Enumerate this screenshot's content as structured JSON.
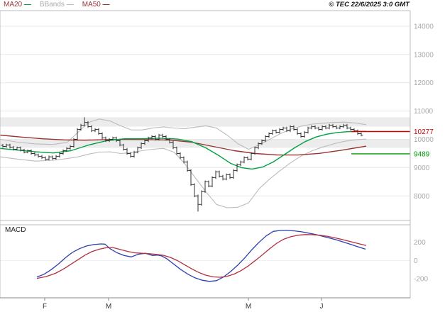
{
  "header": {
    "copyright": "© TEC 22/6/2025 3:0 GMT",
    "legend": [
      {
        "label": "MA20",
        "text_color": "#993333",
        "dash_color": "#00a040"
      },
      {
        "label": "BBands",
        "text_color": "#aaaaaa",
        "dash_color": "#bbbbbb"
      },
      {
        "label": "MA50",
        "text_color": "#993333",
        "dash_color": "#993333"
      }
    ]
  },
  "chart_data": [
    {
      "type": "candlestick",
      "title": "",
      "panel": "price",
      "ylim": [
        7130,
        14550
      ],
      "y_ticks": [
        14000,
        13000,
        12000,
        11000,
        10000,
        9000,
        8000
      ],
      "x_ticks": [
        {
          "label": "F",
          "x": 63
        },
        {
          "label": "M",
          "x": 153
        },
        {
          "label": "M",
          "x": 350
        },
        {
          "label": "J",
          "x": 453
        }
      ],
      "x_start": 4,
      "x_step": 5,
      "wick": 45,
      "closes": [
        9750,
        9800,
        9720,
        9650,
        9700,
        9620,
        9550,
        9600,
        9500,
        9450,
        9400,
        9350,
        9300,
        9380,
        9320,
        9400,
        9500,
        9600,
        9680,
        9750,
        10000,
        10350,
        10500,
        10600,
        10450,
        10300,
        10350,
        10200,
        10050,
        9950,
        10000,
        10050,
        9950,
        9800,
        9650,
        9500,
        9400,
        9550,
        9700,
        9850,
        9950,
        10050,
        10100,
        10000,
        10150,
        10100,
        10000,
        9900,
        9700,
        9500,
        9350,
        9200,
        8900,
        8400,
        8000,
        7700,
        8150,
        8500,
        8350,
        8650,
        8850,
        8700,
        8600,
        8750,
        8650,
        8900,
        9100,
        9200,
        9350,
        9300,
        9500,
        9700,
        9850,
        9950,
        10100,
        10200,
        10300,
        10250,
        10350,
        10400,
        10300,
        10450,
        10350,
        10200,
        10100,
        10250,
        10400,
        10450,
        10400,
        10350,
        10450,
        10400,
        10500,
        10450,
        10400,
        10450,
        10500,
        10400,
        10350,
        10300,
        10200,
        10150
      ],
      "overrides": {
        "23": {
          "high": 10780
        },
        "55": {
          "low": 7450
        }
      },
      "zones": [
        {
          "from": 9700,
          "to": 10000,
          "color": "#ececec"
        },
        {
          "from": 10450,
          "to": 10780,
          "color": "#ececec"
        }
      ],
      "series": [
        {
          "name": "bb-upper",
          "color": "#bbbbbb",
          "width": 1.1,
          "points": [
            [
              0,
              10000
            ],
            [
              25,
              9900
            ],
            [
              50,
              9840
            ],
            [
              75,
              9820
            ],
            [
              95,
              9900
            ],
            [
              110,
              10250
            ],
            [
              125,
              10600
            ],
            [
              140,
              10720
            ],
            [
              155,
              10650
            ],
            [
              170,
              10480
            ],
            [
              185,
              10330
            ],
            [
              200,
              10330
            ],
            [
              215,
              10400
            ],
            [
              230,
              10440
            ],
            [
              245,
              10400
            ],
            [
              260,
              10380
            ],
            [
              275,
              10430
            ],
            [
              290,
              10480
            ],
            [
              305,
              10400
            ],
            [
              320,
              10150
            ],
            [
              335,
              9850
            ],
            [
              350,
              9650
            ],
            [
              365,
              9800
            ],
            [
              380,
              10000
            ],
            [
              395,
              10200
            ],
            [
              410,
              10360
            ],
            [
              425,
              10470
            ],
            [
              440,
              10540
            ],
            [
              455,
              10570
            ],
            [
              470,
              10600
            ],
            [
              485,
              10610
            ],
            [
              500,
              10580
            ],
            [
              516,
              10520
            ]
          ]
        },
        {
          "name": "bb-lower",
          "color": "#bbbbbb",
          "width": 1.1,
          "points": [
            [
              0,
              9380
            ],
            [
              25,
              9300
            ],
            [
              50,
              9230
            ],
            [
              75,
              9260
            ],
            [
              95,
              9320
            ],
            [
              110,
              9380
            ],
            [
              125,
              9480
            ],
            [
              140,
              9550
            ],
            [
              155,
              9560
            ],
            [
              170,
              9500
            ],
            [
              185,
              9530
            ],
            [
              200,
              9600
            ],
            [
              215,
              9650
            ],
            [
              230,
              9680
            ],
            [
              245,
              9550
            ],
            [
              260,
              9150
            ],
            [
              275,
              8650
            ],
            [
              290,
              8150
            ],
            [
              305,
              7700
            ],
            [
              320,
              7580
            ],
            [
              335,
              7600
            ],
            [
              350,
              7750
            ],
            [
              365,
              8250
            ],
            [
              380,
              8600
            ],
            [
              395,
              8900
            ],
            [
              410,
              9180
            ],
            [
              425,
              9420
            ],
            [
              440,
              9600
            ],
            [
              455,
              9730
            ],
            [
              470,
              9840
            ],
            [
              485,
              9930
            ],
            [
              500,
              9980
            ],
            [
              516,
              10010
            ]
          ]
        },
        {
          "name": "MA50",
          "color": "#993333",
          "width": 1.4,
          "points": [
            [
              0,
              10150
            ],
            [
              30,
              10080
            ],
            [
              60,
              10020
            ],
            [
              90,
              9980
            ],
            [
              120,
              9970
            ],
            [
              150,
              9990
            ],
            [
              180,
              9995
            ],
            [
              210,
              9990
            ],
            [
              240,
              9975
            ],
            [
              270,
              9900
            ],
            [
              300,
              9750
            ],
            [
              330,
              9600
            ],
            [
              360,
              9500
            ],
            [
              390,
              9450
            ],
            [
              420,
              9445
            ],
            [
              450,
              9505
            ],
            [
              480,
              9610
            ],
            [
              516,
              9760
            ]
          ]
        },
        {
          "name": "MA20",
          "color": "#00a040",
          "width": 1.4,
          "points": [
            [
              0,
              9680
            ],
            [
              25,
              9620
            ],
            [
              50,
              9560
            ],
            [
              75,
              9520
            ],
            [
              100,
              9600
            ],
            [
              125,
              9800
            ],
            [
              150,
              9950
            ],
            [
              175,
              10020
            ],
            [
              200,
              10020
            ],
            [
              225,
              10040
            ],
            [
              250,
              10010
            ],
            [
              270,
              9920
            ],
            [
              290,
              9700
            ],
            [
              310,
              9400
            ],
            [
              325,
              9150
            ],
            [
              340,
              9000
            ],
            [
              355,
              8950
            ],
            [
              370,
              9020
            ],
            [
              385,
              9200
            ],
            [
              400,
              9450
            ],
            [
              415,
              9700
            ],
            [
              430,
              9920
            ],
            [
              445,
              10080
            ],
            [
              460,
              10180
            ],
            [
              475,
              10240
            ],
            [
              490,
              10270
            ],
            [
              505,
              10280
            ],
            [
              516,
              10280
            ]
          ]
        }
      ],
      "levels": [
        {
          "label": "10277",
          "value": 10277,
          "color": "#cc0000"
        },
        {
          "label": "9489",
          "value": 9489,
          "color": "#009900"
        }
      ]
    },
    {
      "type": "line",
      "title": "MACD",
      "panel": "macd",
      "ylim": [
        -408,
        392
      ],
      "y_ticks": [
        200,
        0,
        -200
      ],
      "series": [
        {
          "name": "macd-line",
          "color": "#2b3fae",
          "width": 1.3,
          "points": [
            [
              52,
              -180
            ],
            [
              62,
              -150
            ],
            [
              72,
              -100
            ],
            [
              82,
              -40
            ],
            [
              92,
              30
            ],
            [
              102,
              90
            ],
            [
              112,
              130
            ],
            [
              122,
              160
            ],
            [
              132,
              175
            ],
            [
              142,
              182
            ],
            [
              148,
              180
            ],
            [
              155,
              130
            ],
            [
              165,
              85
            ],
            [
              175,
              55
            ],
            [
              185,
              40
            ],
            [
              195,
              70
            ],
            [
              205,
              80
            ],
            [
              215,
              55
            ],
            [
              222,
              60
            ],
            [
              228,
              50
            ],
            [
              235,
              20
            ],
            [
              245,
              -40
            ],
            [
              255,
              -100
            ],
            [
              265,
              -150
            ],
            [
              275,
              -190
            ],
            [
              285,
              -215
            ],
            [
              295,
              -228
            ],
            [
              305,
              -220
            ],
            [
              315,
              -180
            ],
            [
              325,
              -120
            ],
            [
              335,
              -50
            ],
            [
              345,
              30
            ],
            [
              355,
              120
            ],
            [
              365,
              200
            ],
            [
              375,
              270
            ],
            [
              385,
              320
            ],
            [
              395,
              330
            ],
            [
              405,
              330
            ],
            [
              415,
              325
            ],
            [
              425,
              315
            ],
            [
              435,
              300
            ],
            [
              445,
              285
            ],
            [
              455,
              265
            ],
            [
              465,
              245
            ],
            [
              475,
              225
            ],
            [
              485,
              200
            ],
            [
              495,
              175
            ],
            [
              505,
              150
            ],
            [
              515,
              125
            ]
          ]
        },
        {
          "name": "signal-line",
          "color": "#b23040",
          "width": 1.3,
          "points": [
            [
              52,
              -195
            ],
            [
              65,
              -175
            ],
            [
              78,
              -140
            ],
            [
              90,
              -90
            ],
            [
              100,
              -40
            ],
            [
              110,
              10
            ],
            [
              120,
              60
            ],
            [
              130,
              100
            ],
            [
              140,
              125
            ],
            [
              150,
              140
            ],
            [
              160,
              140
            ],
            [
              170,
              120
            ],
            [
              180,
              100
            ],
            [
              190,
              85
            ],
            [
              200,
              80
            ],
            [
              210,
              75
            ],
            [
              220,
              68
            ],
            [
              230,
              58
            ],
            [
              240,
              35
            ],
            [
              250,
              0
            ],
            [
              260,
              -45
            ],
            [
              270,
              -90
            ],
            [
              280,
              -130
            ],
            [
              290,
              -160
            ],
            [
              300,
              -178
            ],
            [
              310,
              -183
            ],
            [
              320,
              -172
            ],
            [
              330,
              -148
            ],
            [
              340,
              -108
            ],
            [
              350,
              -58
            ],
            [
              360,
              2
            ],
            [
              370,
              65
            ],
            [
              380,
              130
            ],
            [
              390,
              190
            ],
            [
              400,
              235
            ],
            [
              410,
              262
            ],
            [
              420,
              278
            ],
            [
              430,
              285
            ],
            [
              440,
              283
            ],
            [
              450,
              278
            ],
            [
              460,
              268
            ],
            [
              470,
              252
            ],
            [
              480,
              235
            ],
            [
              490,
              215
            ],
            [
              500,
              196
            ],
            [
              510,
              176
            ],
            [
              516,
              165
            ]
          ]
        }
      ]
    }
  ]
}
